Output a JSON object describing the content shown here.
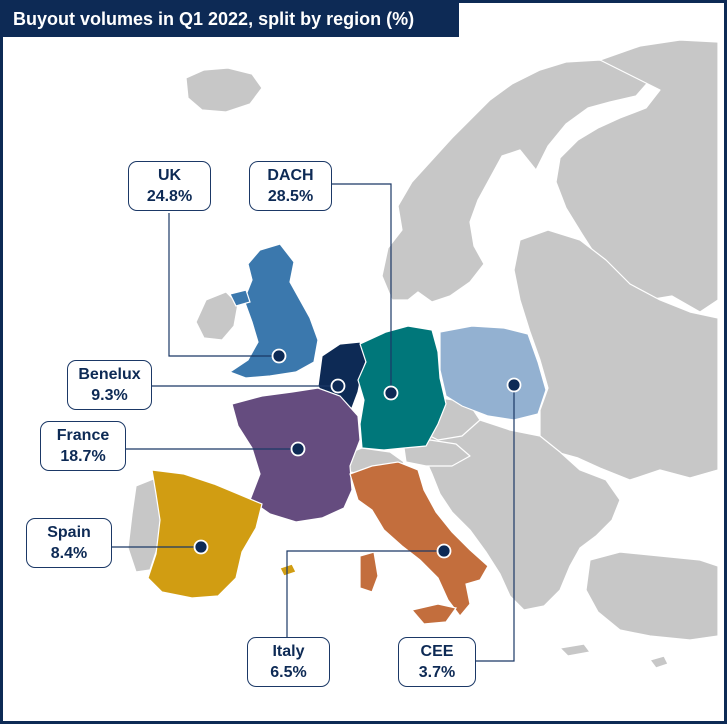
{
  "title": "Buyout volumes in Q1 2022, split by region (%)",
  "colors": {
    "frame": "#0d2a55",
    "land": "#c7c7c7",
    "uk": "#3b78ad",
    "benelux": "#0d2a55",
    "dach": "#00777a",
    "cee": "#93b1d1",
    "france": "#654c7f",
    "spain": "#d19d12",
    "italy": "#c36e3d"
  },
  "regions": {
    "uk": {
      "name": "UK",
      "value": "24.8%"
    },
    "dach": {
      "name": "DACH",
      "value": "28.5%"
    },
    "benelux": {
      "name": "Benelux",
      "value": "9.3%"
    },
    "france": {
      "name": "France",
      "value": "18.7%"
    },
    "spain": {
      "name": "Spain",
      "value": "8.4%"
    },
    "italy": {
      "name": "Italy",
      "value": "6.5%"
    },
    "cee": {
      "name": "CEE",
      "value": "3.7%"
    }
  }
}
